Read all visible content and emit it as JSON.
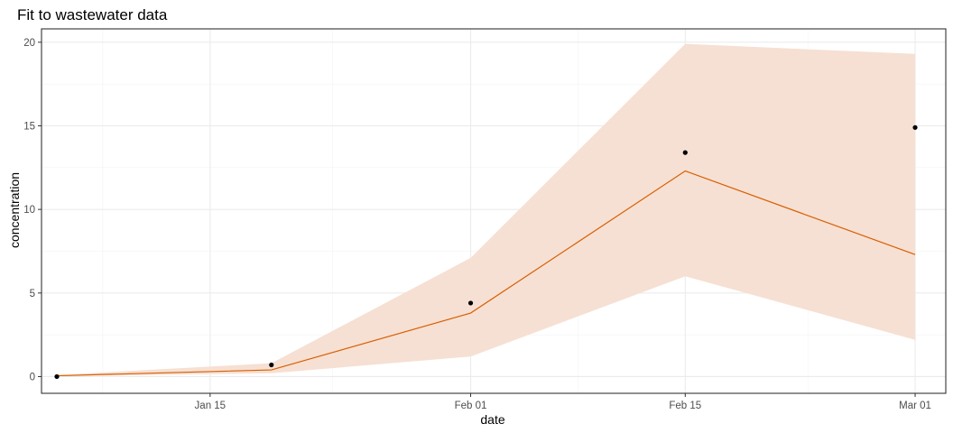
{
  "chart_data": {
    "type": "line",
    "title": "Fit to wastewater data",
    "xlabel": "date",
    "ylabel": "concentration",
    "x_ticks": [
      {
        "date": "2020-01-15",
        "label": "Jan 15"
      },
      {
        "date": "2020-02-01",
        "label": "Feb 01"
      },
      {
        "date": "2020-02-15",
        "label": "Feb 15"
      },
      {
        "date": "2020-03-01",
        "label": "Mar 01"
      }
    ],
    "x_minor_ticks": [
      "2020-01-08",
      "2020-01-23",
      "2020-02-08",
      "2020-02-23"
    ],
    "xlim": [
      "2020-01-04",
      "2020-03-03"
    ],
    "y_ticks": [
      0,
      5,
      10,
      15,
      20
    ],
    "ylim": [
      -1,
      20.8
    ],
    "grid": true,
    "colors": {
      "fit_line": "#d95f02",
      "ribbon": "#f6e0d3",
      "points": "#000000"
    },
    "fit": {
      "x": [
        "2020-01-05",
        "2020-01-19",
        "2020-02-01",
        "2020-02-15",
        "2020-03-01"
      ],
      "y": [
        0.05,
        0.4,
        3.8,
        12.3,
        7.3
      ],
      "lower": [
        0.02,
        0.2,
        1.2,
        6.0,
        2.2
      ],
      "upper": [
        0.1,
        0.8,
        7.1,
        19.9,
        19.3
      ]
    },
    "observed": {
      "x": [
        "2020-01-05",
        "2020-01-19",
        "2020-02-01",
        "2020-02-15",
        "2020-03-01"
      ],
      "y": [
        0.0,
        0.7,
        4.4,
        13.4,
        14.9
      ]
    }
  }
}
